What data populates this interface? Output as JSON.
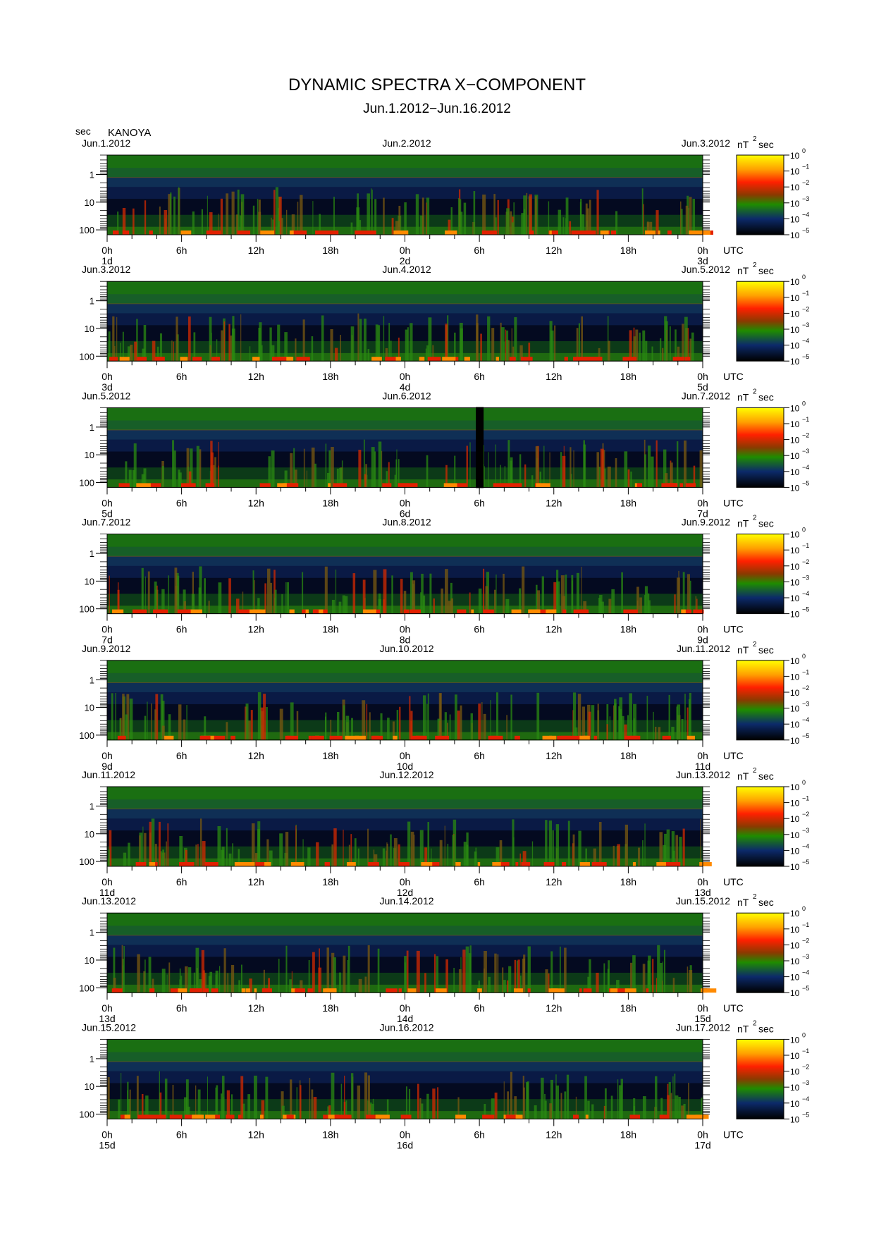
{
  "title": "DYNAMIC SPECTRA X−COMPONENT",
  "subtitle": "Jun.1.2012−Jun.16.2012",
  "station": "KANOYA",
  "y_unit": "sec",
  "colorbar_unit_base": "nT",
  "colorbar_unit_exp": "2",
  "colorbar_unit_tail": "sec",
  "x_unit": "UTC",
  "chart_data": {
    "type": "heatmap",
    "title": "DYNAMIC SPECTRA X−COMPONENT",
    "y_axis": {
      "scale": "log",
      "ticks": [
        "1",
        "10",
        "100"
      ],
      "unit": "sec",
      "direction": "increasing-downward"
    },
    "x_tick_labels": [
      "0h",
      "6h",
      "12h",
      "18h",
      "0h",
      "6h",
      "12h",
      "18h",
      "0h"
    ],
    "colorbar": {
      "scale": "log",
      "tick_base": "10",
      "tick_exponents": [
        "0",
        "−1",
        "−2",
        "−3",
        "−4",
        "−5"
      ],
      "colors": [
        "#ffff00",
        "#ff9900",
        "#ff1a00",
        "#1a8c00",
        "#0a1a6e",
        "#000000"
      ]
    },
    "panels": [
      {
        "start_date": "Jun.1.2012",
        "mid_date": "Jun.2.2012",
        "end_date": "Jun.3.2012",
        "day_labels": [
          "1d",
          "2d",
          "3d"
        ],
        "x_start": "2012-06-01T00:00Z",
        "x_end": "2012-06-03T00:00Z"
      },
      {
        "start_date": "Jun.3.2012",
        "mid_date": "Jun.4.2012",
        "end_date": "Jun.5.2012",
        "day_labels": [
          "3d",
          "4d",
          "5d"
        ],
        "x_start": "2012-06-03T00:00Z",
        "x_end": "2012-06-05T00:00Z"
      },
      {
        "start_date": "Jun.5.2012",
        "mid_date": "Jun.6.2012",
        "end_date": "Jun.7.2012",
        "day_labels": [
          "5d",
          "6d",
          "7d"
        ],
        "x_start": "2012-06-05T00:00Z",
        "x_end": "2012-06-07T00:00Z",
        "data_gap": "2012-06-06T06:00Z"
      },
      {
        "start_date": "Jun.7.2012",
        "mid_date": "Jun.8.2012",
        "end_date": "Jun.9.2012",
        "day_labels": [
          "7d",
          "8d",
          "9d"
        ],
        "x_start": "2012-06-07T00:00Z",
        "x_end": "2012-06-09T00:00Z"
      },
      {
        "start_date": "Jun.9.2012",
        "mid_date": "Jun.10.2012",
        "end_date": "Jun.11.2012",
        "day_labels": [
          "9d",
          "10d",
          "11d"
        ],
        "x_start": "2012-06-09T00:00Z",
        "x_end": "2012-06-11T00:00Z"
      },
      {
        "start_date": "Jun.11.2012",
        "mid_date": "Jun.12.2012",
        "end_date": "Jun.13.2012",
        "day_labels": [
          "11d",
          "12d",
          "13d"
        ],
        "x_start": "2012-06-11T00:00Z",
        "x_end": "2012-06-13T00:00Z"
      },
      {
        "start_date": "Jun.13.2012",
        "mid_date": "Jun.14.2012",
        "end_date": "Jun.15.2012",
        "day_labels": [
          "13d",
          "14d",
          "15d"
        ],
        "x_start": "2012-06-13T00:00Z",
        "x_end": "2012-06-15T00:00Z"
      },
      {
        "start_date": "Jun.15.2012",
        "mid_date": "Jun.16.2012",
        "end_date": "Jun.17.2012",
        "day_labels": [
          "15d",
          "16d",
          "17d"
        ],
        "x_start": "2012-06-15T00:00Z",
        "x_end": "2012-06-17T00:00Z"
      }
    ]
  }
}
